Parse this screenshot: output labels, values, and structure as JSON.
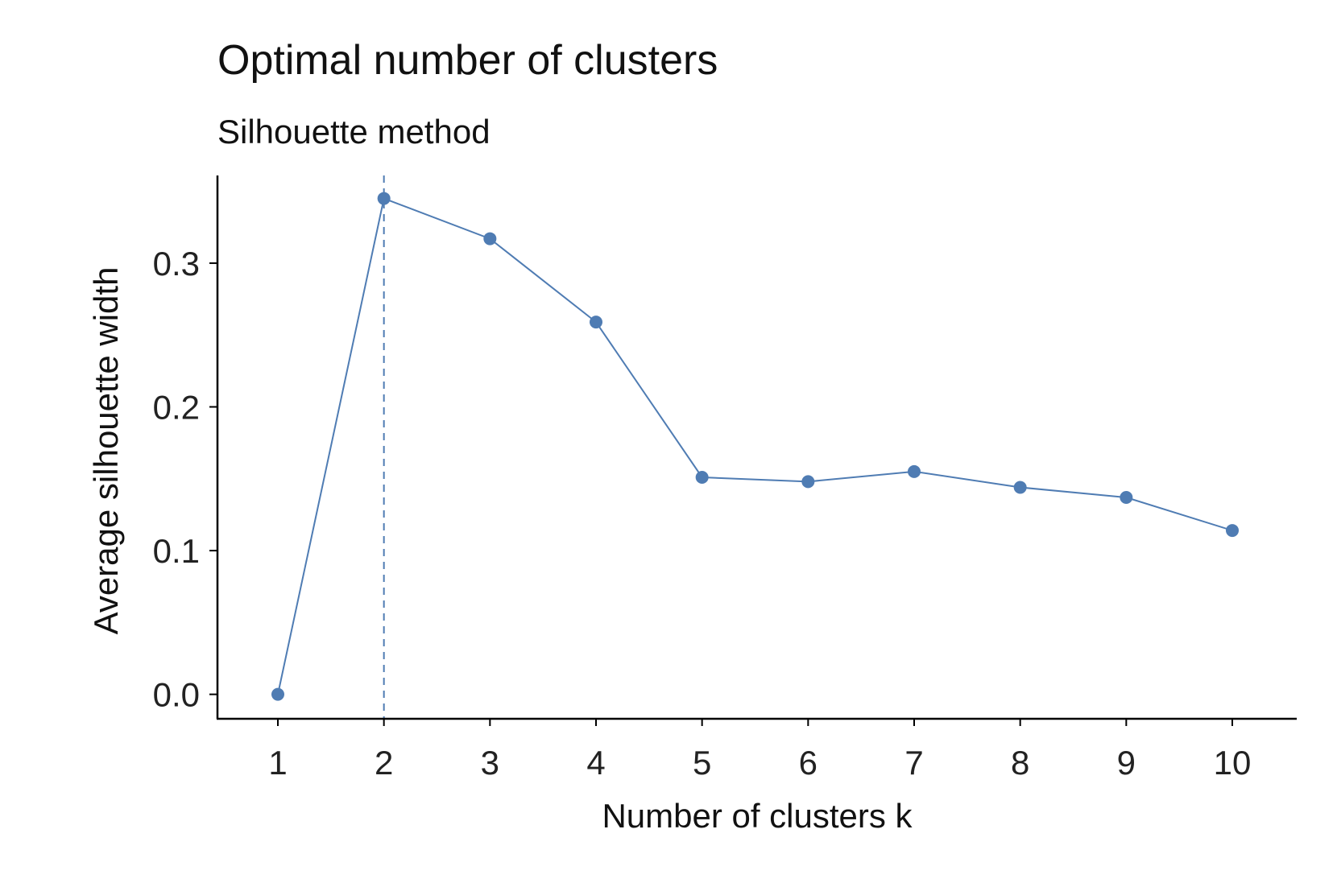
{
  "colors": {
    "series": "#4f7cb3",
    "axis": "#000000",
    "text": "#111111"
  },
  "chart_data": {
    "type": "line",
    "title": "Optimal number of clusters",
    "subtitle": "Silhouette method",
    "xlabel": "Number of clusters k",
    "ylabel": "Average silhouette width",
    "x": [
      "1",
      "2",
      "3",
      "4",
      "5",
      "6",
      "7",
      "8",
      "9",
      "10"
    ],
    "series": [
      {
        "name": "Average silhouette width",
        "values": [
          0.0,
          0.345,
          0.317,
          0.259,
          0.151,
          0.148,
          0.155,
          0.144,
          0.137,
          0.114
        ]
      }
    ],
    "ylim": [
      -0.017,
      0.361
    ],
    "yticks": [
      "0.0",
      "0.1",
      "0.2",
      "0.3"
    ],
    "ytick_values": [
      0.0,
      0.1,
      0.2,
      0.3
    ],
    "reference_line": {
      "type": "vertical",
      "x": "2",
      "style": "dashed"
    },
    "grid": false,
    "legend": "none"
  }
}
